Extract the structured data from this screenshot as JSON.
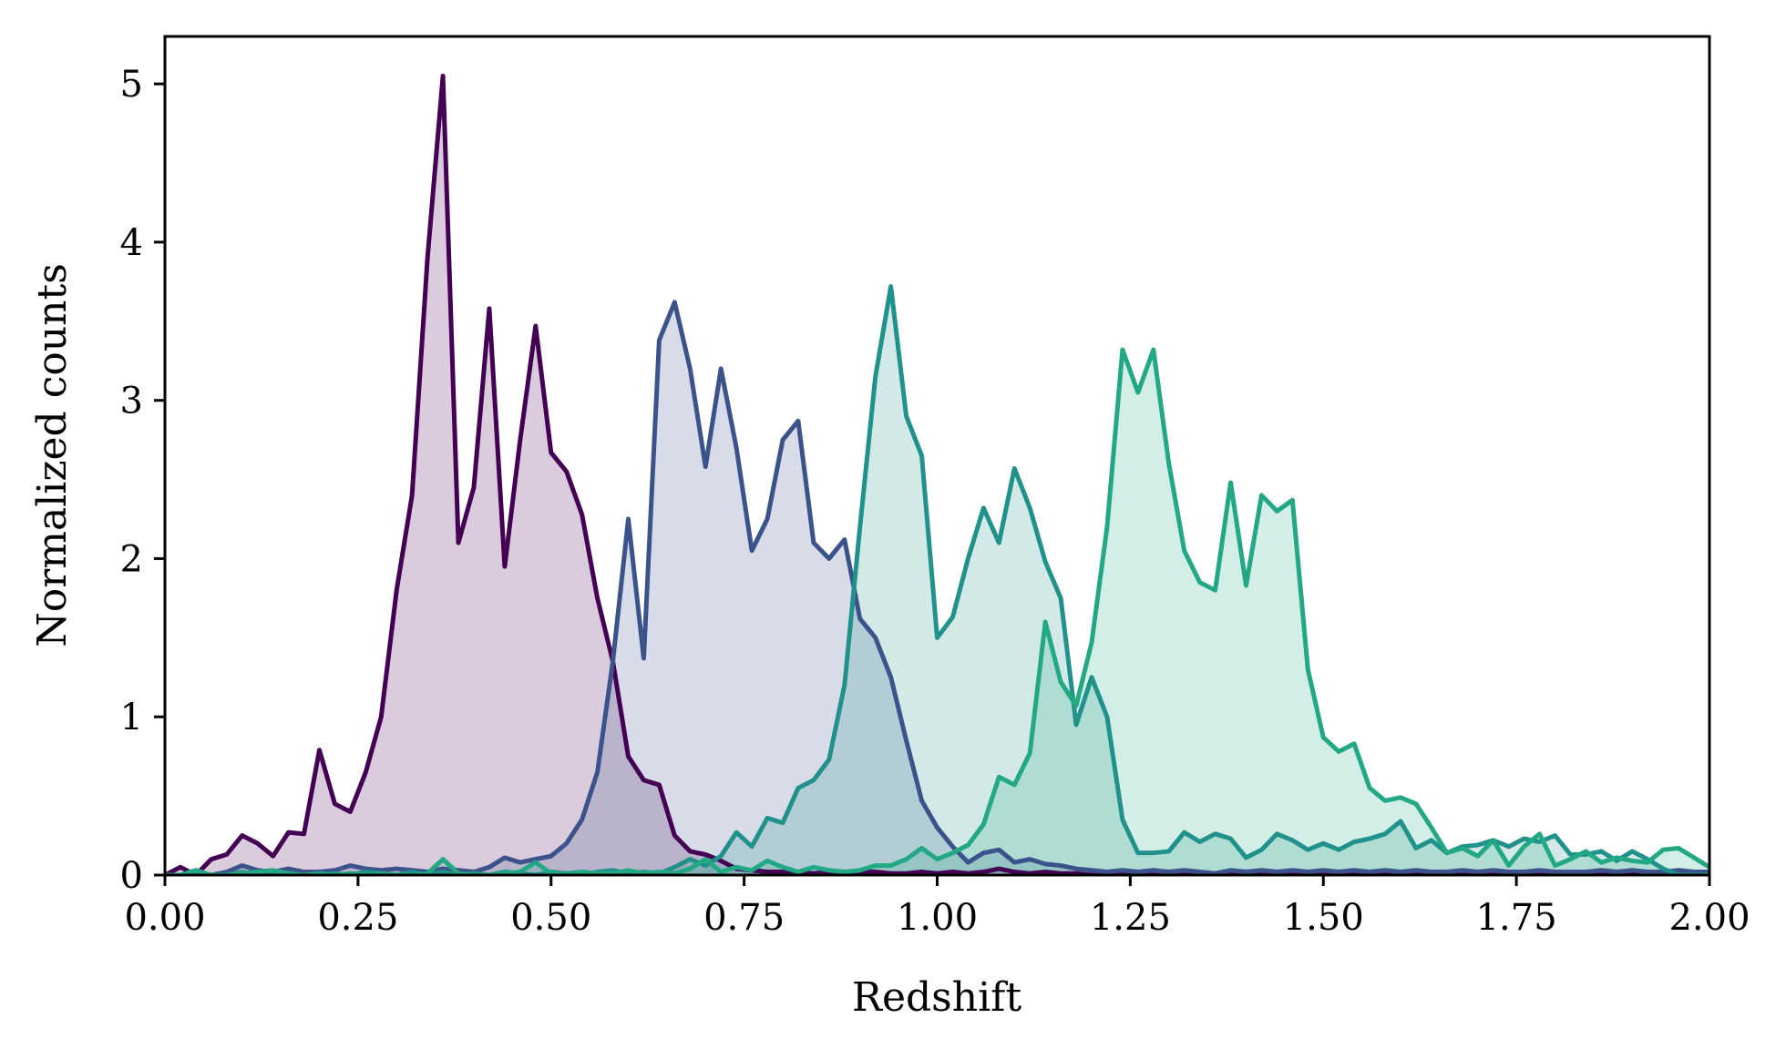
{
  "chart_data": {
    "type": "area",
    "title": "",
    "xlabel": "Redshift",
    "ylabel": "Normalized counts",
    "xlim": [
      0,
      2
    ],
    "ylim": [
      0,
      5.3
    ],
    "xticks": [
      0,
      0.25,
      0.5,
      0.75,
      1.0,
      1.25,
      1.5,
      1.75,
      2.0
    ],
    "xtick_labels": [
      "0.00",
      "0.25",
      "0.50",
      "0.75",
      "1.00",
      "1.25",
      "1.50",
      "1.75",
      "2.00"
    ],
    "yticks": [
      0,
      1,
      2,
      3,
      4,
      5
    ],
    "ytick_labels": [
      "0",
      "1",
      "2",
      "3",
      "4",
      "5"
    ],
    "grid": false,
    "legend": "none",
    "fill_alpha": 0.2,
    "x": [
      0.0,
      0.02,
      0.04,
      0.06,
      0.08,
      0.1,
      0.12,
      0.14,
      0.16,
      0.18,
      0.2,
      0.22,
      0.24,
      0.26,
      0.28,
      0.3,
      0.32,
      0.34,
      0.36,
      0.38,
      0.4,
      0.42,
      0.44,
      0.46,
      0.48,
      0.5,
      0.52,
      0.54,
      0.56,
      0.58,
      0.6,
      0.62,
      0.64,
      0.66,
      0.68,
      0.7,
      0.72,
      0.74,
      0.76,
      0.78,
      0.8,
      0.82,
      0.84,
      0.86,
      0.88,
      0.9,
      0.92,
      0.94,
      0.96,
      0.98,
      1.0,
      1.02,
      1.04,
      1.06,
      1.08,
      1.1,
      1.12,
      1.14,
      1.16,
      1.18,
      1.2,
      1.22,
      1.24,
      1.26,
      1.28,
      1.3,
      1.32,
      1.34,
      1.36,
      1.38,
      1.4,
      1.42,
      1.44,
      1.46,
      1.48,
      1.5,
      1.52,
      1.54,
      1.56,
      1.58,
      1.6,
      1.62,
      1.64,
      1.66,
      1.68,
      1.7,
      1.72,
      1.74,
      1.76,
      1.78,
      1.8,
      1.82,
      1.84,
      1.86,
      1.88,
      1.9,
      1.92,
      1.94,
      1.96,
      1.98,
      2.0
    ],
    "series": [
      {
        "color": "#440154",
        "values": [
          0,
          0.05,
          0,
          0.1,
          0.13,
          0.25,
          0.2,
          0.12,
          0.27,
          0.26,
          0.79,
          0.45,
          0.4,
          0.65,
          1.0,
          1.8,
          2.4,
          3.9,
          5.05,
          2.1,
          2.45,
          3.58,
          1.95,
          2.75,
          3.47,
          2.67,
          2.55,
          2.28,
          1.75,
          1.35,
          0.75,
          0.6,
          0.57,
          0.25,
          0.15,
          0.13,
          0.09,
          0.04,
          0.03,
          0.02,
          0.02,
          0.02,
          0.01,
          0.02,
          0.01,
          0.02,
          0.02,
          0.01,
          0.01,
          0.02,
          0.01,
          0.02,
          0.01,
          0.02,
          0.04,
          0.02,
          0.01,
          0.02,
          0.01,
          0.01,
          0,
          0.01,
          0,
          0.01,
          0,
          0.01,
          0,
          0,
          0,
          0.01,
          0,
          0,
          0,
          0,
          0,
          0,
          0,
          0,
          0,
          0,
          0,
          0,
          0,
          0,
          0,
          0,
          0,
          0,
          0,
          0,
          0,
          0,
          0,
          0,
          0,
          0,
          0,
          0,
          0,
          0,
          0
        ]
      },
      {
        "color": "#3b528b",
        "values": [
          0,
          0,
          0.01,
          0,
          0.02,
          0.06,
          0.03,
          0.02,
          0.04,
          0.02,
          0.02,
          0.03,
          0.06,
          0.04,
          0.03,
          0.04,
          0.03,
          0.02,
          0.04,
          0.03,
          0.02,
          0.05,
          0.11,
          0.08,
          0.1,
          0.12,
          0.2,
          0.35,
          0.65,
          1.35,
          2.25,
          1.37,
          3.38,
          3.62,
          3.2,
          2.58,
          3.2,
          2.7,
          2.05,
          2.25,
          2.75,
          2.87,
          2.1,
          2.0,
          2.12,
          1.62,
          1.5,
          1.25,
          0.85,
          0.47,
          0.3,
          0.18,
          0.08,
          0.14,
          0.16,
          0.08,
          0.1,
          0.07,
          0.06,
          0.04,
          0.03,
          0.02,
          0.03,
          0.02,
          0.03,
          0.02,
          0.03,
          0.02,
          0.01,
          0.03,
          0.02,
          0.03,
          0.02,
          0.03,
          0.02,
          0.03,
          0.02,
          0.03,
          0.02,
          0.03,
          0.02,
          0.03,
          0.02,
          0.02,
          0.03,
          0.02,
          0.03,
          0.02,
          0.02,
          0.03,
          0.02,
          0.02,
          0.02,
          0.03,
          0.02,
          0.03,
          0.02,
          0.02,
          0.03,
          0.02,
          0.02
        ]
      },
      {
        "color": "#21918c",
        "values": [
          0,
          0,
          0,
          0,
          0,
          0.02,
          0,
          0.01,
          0,
          0,
          0,
          0.01,
          0,
          0.02,
          0.01,
          0,
          0.02,
          0,
          0.02,
          0,
          0.01,
          0,
          0.02,
          0.01,
          0,
          0.02,
          0.01,
          0,
          0.02,
          0.03,
          0.01,
          0.02,
          0.01,
          0.05,
          0.1,
          0.06,
          0.12,
          0.27,
          0.18,
          0.36,
          0.33,
          0.55,
          0.6,
          0.73,
          1.2,
          2.2,
          3.15,
          3.72,
          2.9,
          2.65,
          1.5,
          1.63,
          2.0,
          2.32,
          2.1,
          2.57,
          2.32,
          1.98,
          1.75,
          0.95,
          1.25,
          1.0,
          0.35,
          0.14,
          0.14,
          0.15,
          0.27,
          0.21,
          0.26,
          0.23,
          0.11,
          0.16,
          0.26,
          0.22,
          0.16,
          0.2,
          0.16,
          0.21,
          0.23,
          0.26,
          0.34,
          0.17,
          0.22,
          0.14,
          0.18,
          0.19,
          0.22,
          0.18,
          0.23,
          0.21,
          0.25,
          0.13,
          0.13,
          0.15,
          0.09,
          0.15,
          0.1,
          0.04,
          0,
          0,
          0
        ]
      },
      {
        "color": "#22a884",
        "values": [
          0,
          0,
          0.03,
          0,
          0,
          0.01,
          0.02,
          0.03,
          0.01,
          0,
          0.01,
          0,
          0.01,
          0,
          0.01,
          0,
          0,
          0.01,
          0.1,
          0.01,
          0,
          0,
          0.01,
          0.02,
          0.08,
          0.01,
          0.01,
          0.02,
          0.01,
          0.01,
          0.03,
          0.01,
          0.02,
          0.01,
          0.04,
          0.1,
          0.02,
          0.05,
          0.03,
          0.09,
          0.05,
          0.02,
          0.05,
          0.03,
          0.02,
          0.03,
          0.06,
          0.06,
          0.1,
          0.17,
          0.1,
          0.14,
          0.19,
          0.32,
          0.62,
          0.57,
          0.77,
          1.6,
          1.22,
          1.07,
          1.47,
          2.2,
          3.32,
          3.05,
          3.32,
          2.6,
          2.05,
          1.85,
          1.8,
          2.48,
          1.83,
          2.4,
          2.3,
          2.37,
          1.3,
          0.87,
          0.78,
          0.83,
          0.55,
          0.47,
          0.49,
          0.45,
          0.3,
          0.14,
          0.17,
          0.12,
          0.22,
          0.06,
          0.18,
          0.26,
          0.06,
          0.1,
          0.15,
          0.08,
          0.11,
          0.09,
          0.08,
          0.16,
          0.17,
          0.11,
          0.05
        ]
      }
    ]
  }
}
